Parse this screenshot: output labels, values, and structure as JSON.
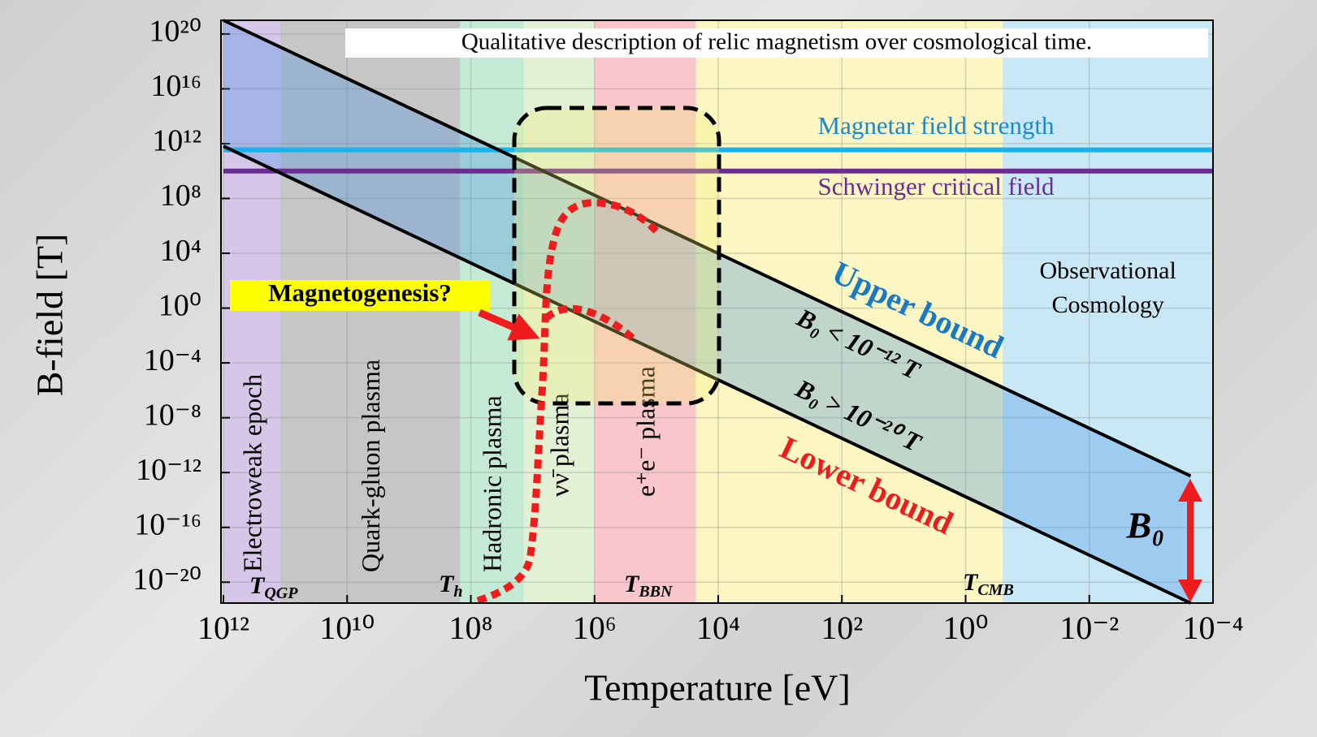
{
  "chart_data": {
    "type": "line",
    "title": "Qualitative description of relic magnetism over cosmological time.",
    "x_label": "Temperature [eV]",
    "y_label": "B-field [T]",
    "x_scale": "log",
    "y_scale": "log",
    "x_reversed": true,
    "grid": true,
    "xlim": [
      1000000000000.0,
      0.0001
    ],
    "ylim": [
      3e-22,
      1e+21
    ],
    "xticks": [
      {
        "value": 1000000000000.0,
        "label": "10¹²"
      },
      {
        "value": 10000000000.0,
        "label": "10¹⁰"
      },
      {
        "value": 100000000.0,
        "label": "10⁸"
      },
      {
        "value": 1000000.0,
        "label": "10⁶"
      },
      {
        "value": 10000.0,
        "label": "10⁴"
      },
      {
        "value": 100.0,
        "label": "10²"
      },
      {
        "value": 1,
        "label": "10⁰"
      },
      {
        "value": 0.01,
        "label": "10⁻²"
      },
      {
        "value": 0.0001,
        "label": "10⁻⁴"
      }
    ],
    "yticks": [
      {
        "value": 1e+20,
        "label": "10²⁰"
      },
      {
        "value": 1e+16,
        "label": "10¹⁶"
      },
      {
        "value": 1000000000000.0,
        "label": "10¹²"
      },
      {
        "value": 100000000.0,
        "label": "10⁸"
      },
      {
        "value": 10000.0,
        "label": "10⁴"
      },
      {
        "value": 1,
        "label": "10⁰"
      },
      {
        "value": 0.0001,
        "label": "10⁻⁴"
      },
      {
        "value": 1e-08,
        "label": "10⁻⁸"
      },
      {
        "value": 1e-12,
        "label": "10⁻¹²"
      },
      {
        "value": 1e-16,
        "label": "10⁻¹⁶"
      },
      {
        "value": 1e-20,
        "label": "10⁻²⁰"
      }
    ],
    "regions": [
      {
        "label": "Electroweak epoch",
        "from": 1000000000000.0,
        "to": 120000000000.0,
        "color": "#d6c6e8"
      },
      {
        "label": "Quark-gluon plasma",
        "from": 120000000000.0,
        "to": 150000000.0,
        "color": "#c6c6c6"
      },
      {
        "label": "Hadronic plasma",
        "from": 150000000.0,
        "to": 14000000.0,
        "color": "#c4ead6"
      },
      {
        "label": "νν̄ plasma",
        "from": 14000000.0,
        "to": 1000000.0,
        "color": "#e2f0d4"
      },
      {
        "label": "e⁺e⁻ plasma",
        "from": 1000000.0,
        "to": 23000.0,
        "color": "#f9c6cb"
      },
      {
        "from": 23000.0,
        "to": 0.25,
        "color": "#fbf6c2"
      },
      {
        "label": [
          "Observational",
          "Cosmology"
        ],
        "from": 0.25,
        "to": 0.0001,
        "color": "#c8e8f6"
      }
    ],
    "hlines": [
      {
        "label": "Magnetar field strength",
        "value": 350000000000.0,
        "color": "#1ab2ea",
        "label_color": "#1888d0"
      },
      {
        "label": "Schwinger critical field",
        "value": 10000000000.0,
        "color": "#6b2d90",
        "label_color": "#6b2d90"
      }
    ],
    "x": [
      1000000000000.0,
      0.00023
    ],
    "series": [
      {
        "name": "Upper bound",
        "color": "#000000",
        "label_color": "#1a78c8",
        "condition": "B₀ < 10⁻¹² T",
        "values": [
          1e+21,
          5.6e-13
        ]
      },
      {
        "name": "Lower bound",
        "color": "#000000",
        "label_color": "#ee1c1c",
        "condition": "B₀ > 10⁻²⁰ T",
        "values": [
          660000000000.0,
          3e-22
        ]
      }
    ],
    "markers": [
      {
        "symbol": "T",
        "subscript": "QGP"
      },
      {
        "symbol": "T",
        "subscript": "h"
      },
      {
        "symbol": "T",
        "subscript": "BBN"
      },
      {
        "symbol": "T",
        "subscript": "CMB"
      }
    ],
    "magnetogenesis_label": "Magnetogenesis?",
    "b0_label": "B₀"
  }
}
